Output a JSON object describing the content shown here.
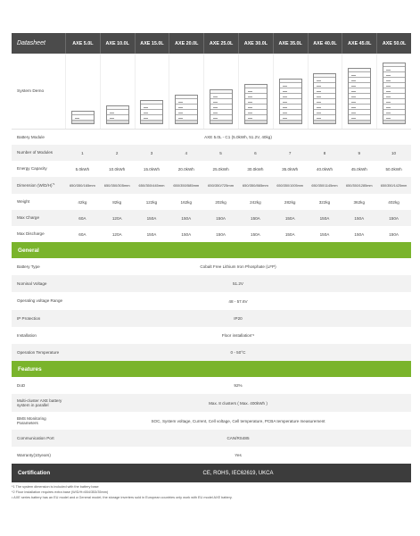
{
  "header": {
    "title": "Datasheet",
    "models": [
      "AXE 5.0L",
      "AXE 10.0L",
      "AXE 15.0L",
      "AXE 20.0L",
      "AXE 25.0L",
      "AXE 30.0L",
      "AXE 35.0L",
      "AXE 40.0L",
      "AXE 45.0L",
      "AXE 50.0L"
    ]
  },
  "system_demo": {
    "label": "System Demo",
    "module_counts": [
      1,
      2,
      3,
      4,
      5,
      6,
      7,
      8,
      9,
      10
    ]
  },
  "battery_module": {
    "label": "Battery Module",
    "value": "AXE 5.0L - C1 (5.0kWh, 51.2V, 40kg)"
  },
  "number_of_modules": {
    "label": "Number of Modules",
    "values": [
      "1",
      "2",
      "3",
      "4",
      "5",
      "6",
      "7",
      "8",
      "9",
      "10"
    ]
  },
  "energy_capacity": {
    "label": "Energy Capacity",
    "values": [
      "5.0kWh",
      "10.0kWh",
      "15.0kWh",
      "20.0kWh",
      "25.0kWh",
      "30.0kWh",
      "35.0kWh",
      "40.0kWh",
      "45.0kWh",
      "50.0kWh"
    ]
  },
  "dimension": {
    "label": "Dimension (W/D/H)",
    "sup": "*1",
    "values": [
      "650/350/165mm",
      "650/350/305mm",
      "650/350/445mm",
      "650/350/585mm",
      "650/350/725mm",
      "650/350/865mm",
      "650/350/1005mm",
      "650/350/1145mm",
      "650/350/1285mm",
      "650/350/1425mm"
    ]
  },
  "weight": {
    "label": "Weight",
    "values": [
      "42kg",
      "82kg",
      "122kg",
      "162kg",
      "202kg",
      "242kg",
      "282kg",
      "322kg",
      "362kg",
      "402kg"
    ]
  },
  "max_charge": {
    "label": "Max Charge",
    "values": [
      "60A",
      "120A",
      "150A",
      "150A",
      "150A",
      "150A",
      "150A",
      "150A",
      "150A",
      "150A"
    ]
  },
  "max_discharge": {
    "label": "Max Discharge",
    "values": [
      "60A",
      "120A",
      "150A",
      "150A",
      "150A",
      "150A",
      "150A",
      "150A",
      "150A",
      "150A"
    ]
  },
  "general": {
    "title": "General",
    "battery_type": {
      "label": "Battery Type",
      "value": "Cobalt Free Lithium Iron Phosphate (LFP)"
    },
    "nominal_voltage": {
      "label": "Nominal Voltage",
      "value": "51.2V"
    },
    "operating_voltage": {
      "label": "Operating voltage Range",
      "value": "48 - 57.6V"
    },
    "ip_protection": {
      "label": "IP Protection",
      "value": "IP20"
    },
    "installation": {
      "label": "Installation",
      "value": "Floor installation",
      "sup": "*2"
    },
    "operation_temperature": {
      "label": "Operation Temperature",
      "value": "0 - 50°C"
    }
  },
  "features": {
    "title": "Features",
    "dod": {
      "label": "DoD",
      "value": "92%"
    },
    "multi_cluster": {
      "label": "Multi-cluster AXE battery system in parallel",
      "value": "Max. 8 clusters ( Max. 400kWh )"
    },
    "bms": {
      "label": "BMS Monitoring Parameters",
      "value": "SOC, System voltage, Current, Cell voltage, Cell temperature, PCBA temperature measurement"
    },
    "communication": {
      "label": "Communication Port",
      "value": "CAN/RS485"
    },
    "warranty": {
      "label": "Warranty(10years)",
      "value": "Yes"
    }
  },
  "certification": {
    "label": "Certification",
    "value": "CE, ROHS, IEC62619, UKCA"
  },
  "notes": [
    "*1 The system dimension is included with the battery base",
    "*2 Floor installation requires extra base (W/D/H=654/353/35mm)",
    "• AXE series battery has an EU model and a General model, the storage inverters sold in European countries only work with EU model AXE battery."
  ],
  "colors": {
    "header_bg": "#4b4b4b",
    "section_green": "#7ab42c",
    "cert_bg": "#3c3c3c"
  }
}
